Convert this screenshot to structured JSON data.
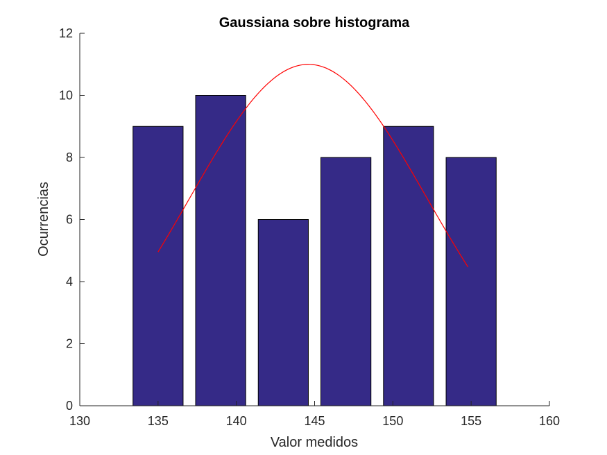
{
  "chart_data": {
    "type": "bar",
    "title": "Gaussiana sobre histograma",
    "xlabel": "Valor medidos",
    "ylabel": "Ocurrencias",
    "xlim": [
      130,
      160
    ],
    "ylim": [
      0,
      12
    ],
    "xticks": [
      "130",
      "135",
      "140",
      "145",
      "150",
      "155",
      "160"
    ],
    "yticks": [
      "0",
      "2",
      "4",
      "6",
      "8",
      "10",
      "12"
    ],
    "grid": false,
    "legend": "none",
    "bars": {
      "centers": [
        135,
        139,
        143,
        147,
        151,
        155
      ],
      "values": [
        9,
        10,
        6,
        8,
        9,
        8
      ],
      "width": 3.2,
      "color": "#352a87"
    },
    "curve": {
      "type": "gaussian",
      "color": "#ff0000",
      "amplitude": 11,
      "mean": 144.6,
      "sigma": 7.6,
      "x_range": [
        135,
        154.8
      ]
    }
  }
}
